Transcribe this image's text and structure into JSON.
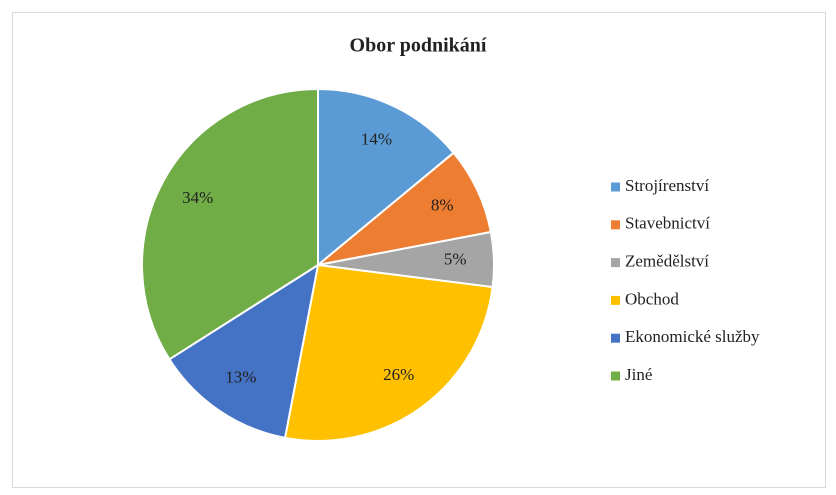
{
  "chart_data": {
    "type": "pie",
    "title": "Obor podnikání",
    "categories": [
      "Strojírenství",
      "Stavebnictví",
      "Zemědělství",
      "Obchod",
      "Ekonomické služby",
      "Jiné"
    ],
    "values": [
      14,
      8,
      5,
      26,
      13,
      34
    ],
    "value_labels": [
      "14%",
      "8%",
      "5%",
      "26%",
      "13%",
      "34%"
    ],
    "colors": [
      "#5b9bd5",
      "#ed7d31",
      "#a5a5a5",
      "#ffc000",
      "#4472c4",
      "#70ad47"
    ],
    "legend": "right"
  }
}
